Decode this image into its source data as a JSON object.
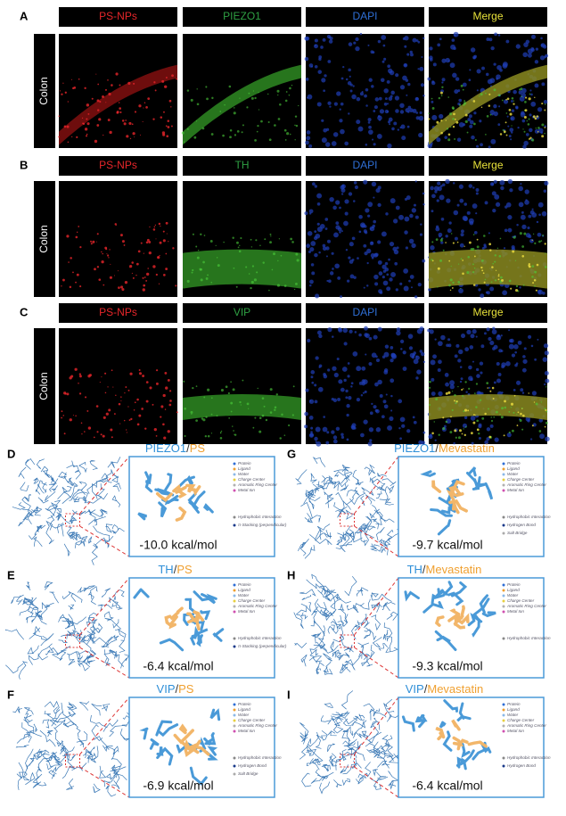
{
  "microscopy": [
    {
      "label": "A",
      "row_label": "Colon",
      "channels": [
        {
          "name": "PS-NPs",
          "color": "#e8262a"
        },
        {
          "name": "PIEZO1",
          "color": "#2ea043"
        },
        {
          "name": "DAPI",
          "color": "#2f6fd6"
        },
        {
          "name": "Merge",
          "color": "#e8e23a"
        }
      ]
    },
    {
      "label": "B",
      "row_label": "Colon",
      "channels": [
        {
          "name": "PS-NPs",
          "color": "#e8262a"
        },
        {
          "name": "TH",
          "color": "#2ea043"
        },
        {
          "name": "DAPI",
          "color": "#2f6fd6"
        },
        {
          "name": "Merge",
          "color": "#e8e23a"
        }
      ]
    },
    {
      "label": "C",
      "row_label": "Colon",
      "channels": [
        {
          "name": "PS-NPs",
          "color": "#e8262a"
        },
        {
          "name": "VIP",
          "color": "#2ea043"
        },
        {
          "name": "DAPI",
          "color": "#2f6fd6"
        },
        {
          "name": "Merge",
          "color": "#e8e23a"
        }
      ]
    }
  ],
  "docking": [
    {
      "label": "D",
      "protein": "PIEZO1",
      "separator": "/",
      "ligand": "PS",
      "energy": "-10.0 kcal/mol",
      "legend": [
        "Protein",
        "Ligand",
        "Water",
        "Charge Center",
        "Aromatic Ring Center",
        "Metal Ion",
        "Hydrophobic Interaction",
        "π-Stacking (perpendicular)"
      ]
    },
    {
      "label": "E",
      "protein": "TH",
      "separator": "/",
      "ligand": "PS",
      "energy": "-6.4 kcal/mol",
      "legend": [
        "Protein",
        "Ligand",
        "Water",
        "Charge Center",
        "Aromatic Ring Center",
        "Metal Ion",
        "Hydrophobic Interaction",
        "π-Stacking (perpendicular)"
      ]
    },
    {
      "label": "F",
      "protein": "VIP",
      "separator": "/",
      "ligand": "PS",
      "energy": "-6.9 kcal/mol",
      "legend": [
        "Protein",
        "Ligand",
        "Water",
        "Charge Center",
        "Aromatic Ring Center",
        "Metal Ion",
        "Hydrophobic Interaction",
        "Hydrogen Bond",
        "Salt Bridge"
      ]
    },
    {
      "label": "G",
      "protein": "PIEZO1",
      "separator": "/",
      "ligand": "Mevastatin",
      "energy": "-9.7 kcal/mol",
      "legend": [
        "Protein",
        "Ligand",
        "Water",
        "Charge Center",
        "Aromatic Ring Center",
        "Metal Ion",
        "Hydrophobic Interaction",
        "Hydrogen Bond",
        "Salt Bridge"
      ]
    },
    {
      "label": "H",
      "protein": "TH",
      "separator": "/",
      "ligand": "Mevastatin",
      "energy": "-9.3 kcal/mol",
      "legend": [
        "Protein",
        "Ligand",
        "Water",
        "Charge Center",
        "Aromatic Ring Center",
        "Metal Ion",
        "Hydrophobic Interaction"
      ]
    },
    {
      "label": "I",
      "protein": "VIP",
      "separator": "/",
      "ligand": "Mevastatin",
      "energy": "-6.4 kcal/mol",
      "legend": [
        "Protein",
        "Ligand",
        "Water",
        "Charge Center",
        "Aromatic Ring Center",
        "Metal Ion",
        "Hydrophobic Interaction",
        "Hydrogen Bond"
      ]
    }
  ]
}
